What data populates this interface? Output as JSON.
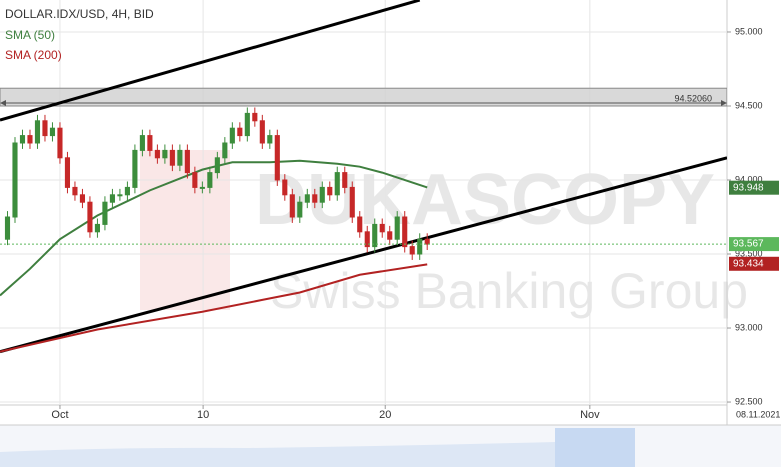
{
  "chart_data": {
    "type": "candlestick",
    "title": "DOLLAR.IDX/USD, 4H, BID",
    "x": [
      1,
      2,
      3,
      4,
      5,
      6,
      7,
      8,
      9,
      10,
      11,
      12,
      13,
      14,
      15,
      16,
      17,
      18,
      19,
      20,
      21,
      22,
      23,
      24,
      25,
      26,
      27,
      28,
      29,
      30,
      31,
      32,
      33,
      34,
      35,
      36,
      37,
      38,
      39,
      40,
      41,
      42,
      43,
      44,
      45,
      46,
      47,
      48,
      49,
      50,
      51,
      52,
      53,
      54,
      55,
      56,
      57
    ],
    "open": [
      93.6,
      93.75,
      94.25,
      94.3,
      94.25,
      94.4,
      94.3,
      94.35,
      94.15,
      93.95,
      93.9,
      93.85,
      93.65,
      93.7,
      93.85,
      93.9,
      93.9,
      93.95,
      94.2,
      94.3,
      94.2,
      94.15,
      94.2,
      94.1,
      94.2,
      94.05,
      93.95,
      93.95,
      94.05,
      94.15,
      94.25,
      94.35,
      94.3,
      94.45,
      94.4,
      94.25,
      94.3,
      94.0,
      93.9,
      93.75,
      93.85,
      93.9,
      93.85,
      93.95,
      93.9,
      94.05,
      93.95,
      93.75,
      93.65,
      93.55,
      93.7,
      93.65,
      93.6,
      93.75,
      93.55,
      93.5,
      93.6
    ],
    "high": [
      93.79,
      94.29,
      94.34,
      94.34,
      94.44,
      94.44,
      94.39,
      94.39,
      94.19,
      93.99,
      93.94,
      93.89,
      93.74,
      93.89,
      93.94,
      93.94,
      93.99,
      94.24,
      94.34,
      94.34,
      94.24,
      94.24,
      94.24,
      94.24,
      94.24,
      94.09,
      93.99,
      94.09,
      94.19,
      94.29,
      94.39,
      94.39,
      94.49,
      94.49,
      94.44,
      94.34,
      94.34,
      94.04,
      93.94,
      93.89,
      93.94,
      93.94,
      93.99,
      93.99,
      94.09,
      94.09,
      93.99,
      93.79,
      93.69,
      93.74,
      93.74,
      93.69,
      93.79,
      93.79,
      93.59,
      93.64,
      93.64
    ],
    "low": [
      93.56,
      93.71,
      94.21,
      94.21,
      94.21,
      94.26,
      94.26,
      94.11,
      93.91,
      93.86,
      93.81,
      93.61,
      93.61,
      93.66,
      93.81,
      93.86,
      93.86,
      93.91,
      94.16,
      94.16,
      94.11,
      94.11,
      94.06,
      94.06,
      94.01,
      93.91,
      93.91,
      93.91,
      94.01,
      94.11,
      94.21,
      94.26,
      94.26,
      94.36,
      94.21,
      94.21,
      93.96,
      93.86,
      93.71,
      93.71,
      93.81,
      93.81,
      93.81,
      93.86,
      93.86,
      93.91,
      93.71,
      93.61,
      93.51,
      93.51,
      93.61,
      93.56,
      93.56,
      93.51,
      93.46,
      93.46,
      93.527
    ],
    "close": [
      93.75,
      94.25,
      94.3,
      94.25,
      94.4,
      94.3,
      94.35,
      94.15,
      93.95,
      93.9,
      93.85,
      93.65,
      93.7,
      93.85,
      93.9,
      93.9,
      93.95,
      94.2,
      94.3,
      94.2,
      94.15,
      94.2,
      94.1,
      94.2,
      94.05,
      93.95,
      93.95,
      94.05,
      94.15,
      94.25,
      94.35,
      94.3,
      94.45,
      94.4,
      94.25,
      94.3,
      94.0,
      93.9,
      93.75,
      93.85,
      93.9,
      93.85,
      93.95,
      93.9,
      94.05,
      93.95,
      93.75,
      93.65,
      93.55,
      93.7,
      93.65,
      93.6,
      93.75,
      93.55,
      93.5,
      93.6,
      93.567
    ],
    "up_color": "#3c8d3c",
    "down_color": "#c62828",
    "series": [
      {
        "name": "SMA (50)",
        "color": "#3f7f3f",
        "x": [
          0,
          4,
          8,
          13,
          20,
          27,
          31,
          36,
          40,
          45,
          48,
          51,
          57
        ],
        "values": [
          93.22,
          93.4,
          93.6,
          93.76,
          93.93,
          94.07,
          94.12,
          94.12,
          94.13,
          94.11,
          94.09,
          94.05,
          93.95
        ],
        "last": 93.948
      },
      {
        "name": "SMA (200)",
        "color": "#b22222",
        "x": [
          0,
          13,
          27,
          35,
          40,
          48,
          57
        ],
        "values": [
          92.84,
          92.99,
          93.11,
          93.19,
          93.24,
          93.36,
          93.43
        ],
        "last": 93.434
      }
    ],
    "trendlines": [
      {
        "x": [
          0,
          56
        ],
        "values": [
          94.405,
          95.216
        ]
      },
      {
        "x": [
          0,
          97
        ],
        "values": [
          92.84,
          94.15
        ]
      }
    ],
    "zone": [
      94.5,
      94.62
    ],
    "level": {
      "value": 94.5206,
      "label": "94.52060"
    },
    "last_price": 93.567,
    "last_color": "#5cb85c",
    "xlim": [
      0,
      97
    ],
    "ylim": [
      92.48,
      95.216
    ],
    "xticks": [
      {
        "value": 8,
        "label": "Oct"
      },
      {
        "value": 27.1,
        "label": "10"
      },
      {
        "value": 51.4,
        "label": "20"
      },
      {
        "value": 78.7,
        "label": "Nov"
      }
    ],
    "yticks": [
      {
        "value": 95,
        "label": "95.000"
      },
      {
        "value": 94.5,
        "label": "94.500"
      },
      {
        "value": 94,
        "label": "94.000"
      },
      {
        "value": 93.5,
        "label": "93.500"
      },
      {
        "value": 93,
        "label": "93.000"
      },
      {
        "value": 92.5,
        "label": "92.500"
      }
    ],
    "grid": true,
    "date_label": "08.11.2021",
    "watermark": [
      "DUKASCOPY",
      "Swiss Banking Group"
    ]
  }
}
